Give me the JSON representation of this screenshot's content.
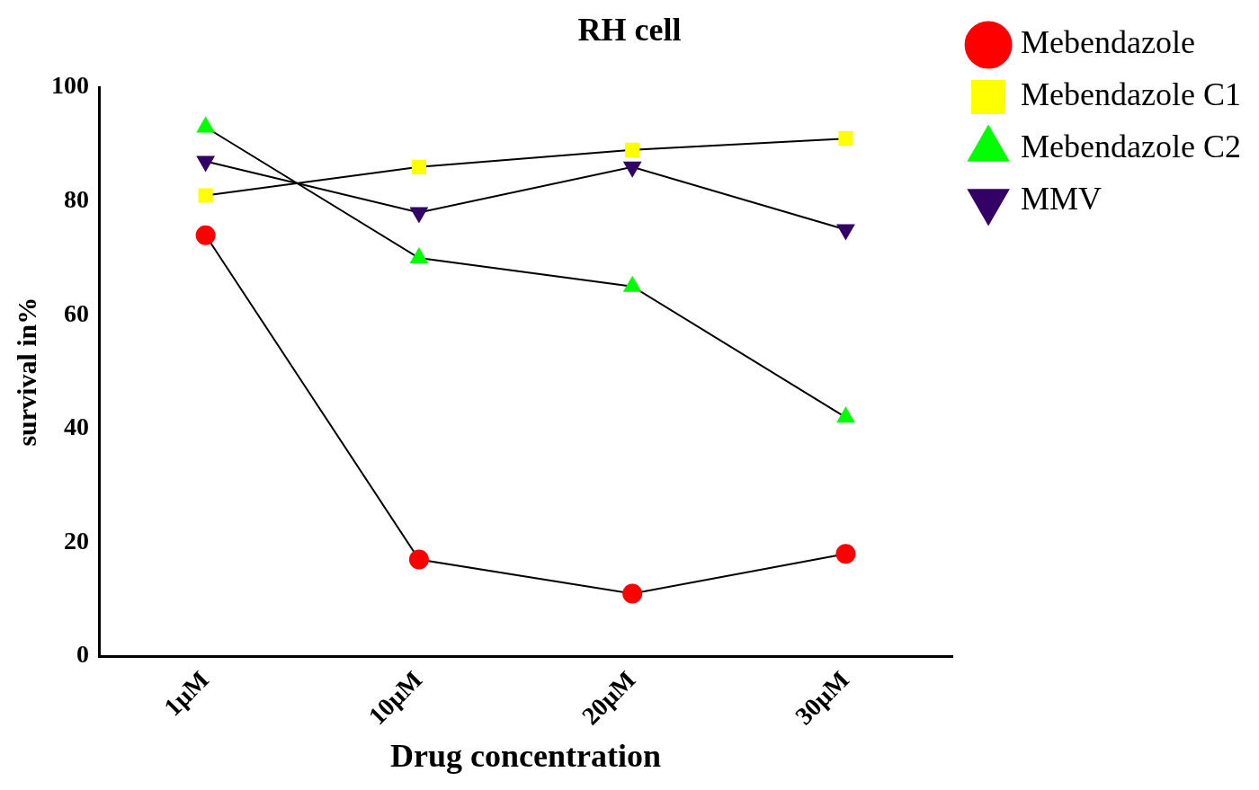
{
  "chart_data": {
    "type": "line",
    "title": "RH cell",
    "x_label": "Drug concentration",
    "y_label": "survival in%",
    "categories": [
      "1µM",
      "10µM",
      "20µM",
      "30µM"
    ],
    "series": [
      {
        "name": "Mebendazole",
        "color": "#ff0000",
        "marker": "circle",
        "values": [
          74,
          17,
          11,
          18
        ]
      },
      {
        "name": "Mebendazole C1",
        "color": "#ffff00",
        "marker": "square",
        "values": [
          81,
          86,
          89,
          91
        ]
      },
      {
        "name": "Mebendazole C2",
        "color": "#00ff00",
        "marker": "triangle",
        "values": [
          93,
          70,
          65,
          42
        ]
      },
      {
        "name": "MMV",
        "color": "#330066",
        "marker": "triangle-down",
        "values": [
          87,
          78,
          86,
          75
        ]
      }
    ],
    "ylim": [
      0,
      100
    ],
    "yticks": [
      0,
      20,
      40,
      60,
      80,
      100
    ],
    "grid": false,
    "legend": "right"
  }
}
